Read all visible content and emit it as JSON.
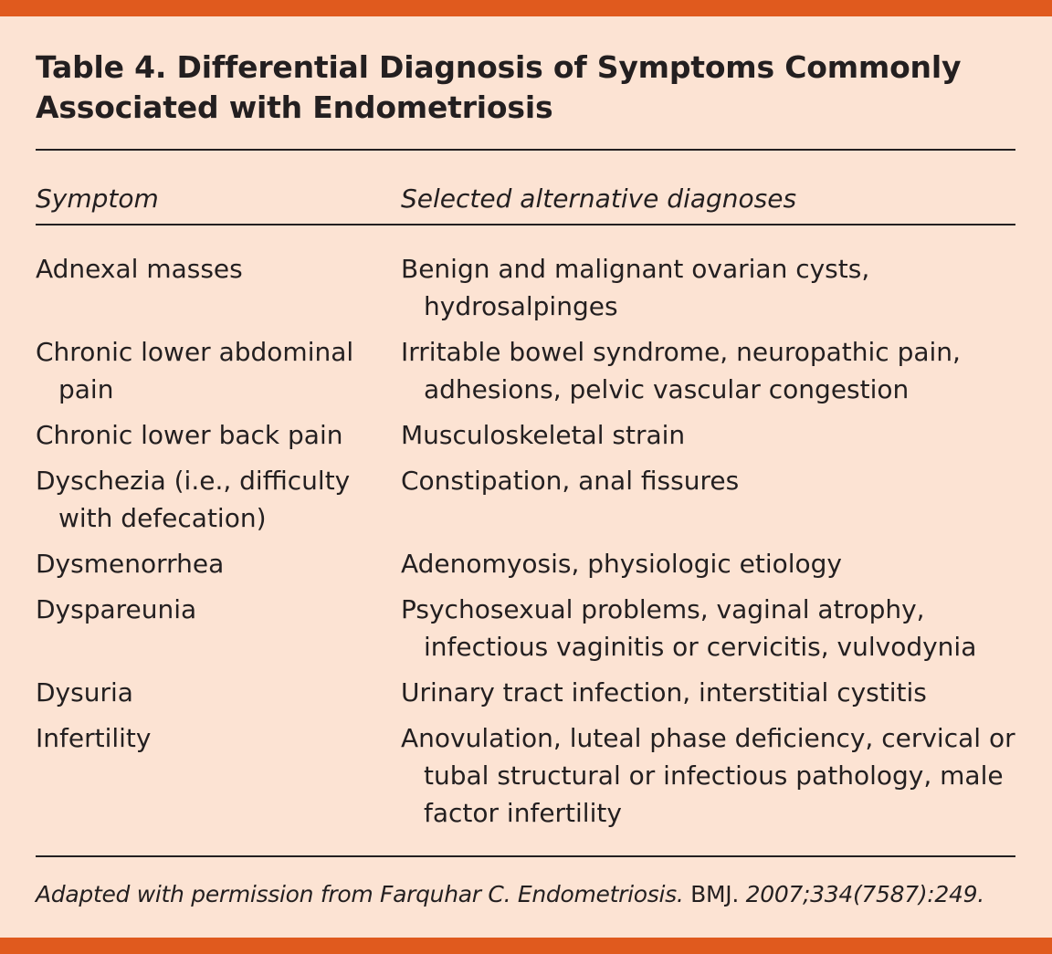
{
  "title": "Table 4. Differential Diagnosis of Symptoms Commonly Associated with Endometriosis",
  "columns": [
    "Symptom",
    "Selected alternative diagnoses"
  ],
  "rows": [
    {
      "symptom": "Adnexal masses",
      "diagnoses": "Benign and malignant ovarian cysts, hydrosalpinges"
    },
    {
      "symptom": "Chronic lower abdominal pain",
      "diagnoses": "Irritable bowel syndrome, neuropathic pain, adhesions, pelvic vascular congestion"
    },
    {
      "symptom": "Chronic lower back pain",
      "diagnoses": "Musculoskeletal strain"
    },
    {
      "symptom": "Dyschezia (i.e., difficulty with defecation)",
      "diagnoses": "Constipation, anal fissures"
    },
    {
      "symptom": "Dysmenorrhea",
      "diagnoses": "Adenomyosis, physiologic etiology"
    },
    {
      "symptom": "Dyspareunia",
      "diagnoses": "Psychosexual problems, vaginal atrophy, infectious vaginitis or cervicitis, vulvodynia"
    },
    {
      "symptom": "Dysuria",
      "diagnoses": "Urinary tract infection, interstitial cystitis"
    },
    {
      "symptom": "Infertility",
      "diagnoses": "Anovulation, luteal phase deficiency, cervical or tubal structural or infectious pathology, male factor infertility"
    }
  ],
  "footnote": {
    "part1": "Adapted with permission from Farquhar C. Endometriosis. ",
    "journal": "BMJ.",
    "part2": " 2007;334(7587):249."
  },
  "colors": {
    "background": "#fce3d3",
    "accent_bar": "#e05a1e",
    "text": "#231f20"
  }
}
